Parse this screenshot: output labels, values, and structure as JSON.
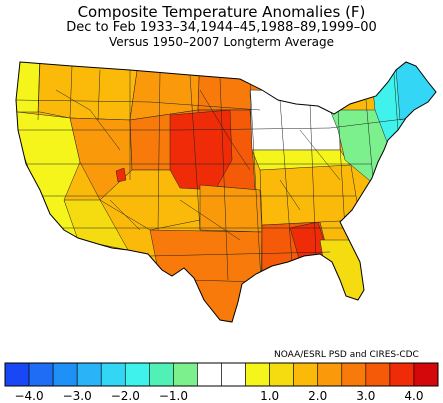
{
  "title": "Composite Temperature Anomalies (F)",
  "subtitle": "Dec to Feb   1933–34,1944–45,1988–89,1999–00",
  "comparison": "Versus 1950–2007 Longterm Average",
  "credit": "NOAA/ESRL PSD and CIRES-CDC",
  "legend": {
    "bins": [
      {
        "color": "#1a47f5"
      },
      {
        "color": "#1f6cf5"
      },
      {
        "color": "#1f90f5"
      },
      {
        "color": "#2ab3f7"
      },
      {
        "color": "#33d6f5"
      },
      {
        "color": "#3ff2ec"
      },
      {
        "color": "#50f0b6"
      },
      {
        "color": "#7cf08c"
      },
      {
        "color": "#ffffff"
      },
      {
        "color": "#ffffff"
      },
      {
        "color": "#f5f51c"
      },
      {
        "color": "#f5dc10"
      },
      {
        "color": "#fbb90a"
      },
      {
        "color": "#fa9a0a"
      },
      {
        "color": "#f77a0a"
      },
      {
        "color": "#f45a08"
      },
      {
        "color": "#ef2b08"
      },
      {
        "color": "#d4080a"
      }
    ],
    "ticks": [
      "−4.0",
      "−3.0",
      "−2.0",
      "−1.0",
      "1.0",
      "2.0",
      "3.0",
      "4.0"
    ]
  },
  "regions": [
    {
      "name": "pacific-northwest",
      "anomaly": 0.8,
      "color": "#fbb90a"
    },
    {
      "name": "washington-coast",
      "anomaly": 0.2,
      "color": "#f5f51c"
    },
    {
      "name": "california",
      "anomaly": 0.4,
      "color": "#f5f51c"
    },
    {
      "name": "california-coast",
      "anomaly": 0.0,
      "color": "#ffffff"
    },
    {
      "name": "great-basin",
      "anomaly": 1.8,
      "color": "#fa9a0a"
    },
    {
      "name": "desert-southwest",
      "anomaly": 0.9,
      "color": "#f5dc10"
    },
    {
      "name": "northern-rockies",
      "anomaly": 1.8,
      "color": "#fa9a0a"
    },
    {
      "name": "central-rockies",
      "anomaly": 2.0,
      "color": "#f77a0a"
    },
    {
      "name": "four-corners",
      "anomaly": 1.4,
      "color": "#fbb90a"
    },
    {
      "name": "northern-plains",
      "anomaly": 2.2,
      "color": "#f77a0a"
    },
    {
      "name": "upper-midwest-core",
      "anomaly": 3.2,
      "color": "#ef2b08"
    },
    {
      "name": "central-plains",
      "anomaly": 2.5,
      "color": "#f45a08"
    },
    {
      "name": "southern-plains",
      "anomaly": 1.8,
      "color": "#fa9a0a"
    },
    {
      "name": "texas",
      "anomaly": 2.2,
      "color": "#f77a0a"
    },
    {
      "name": "louisiana-alabama",
      "anomaly": 2.6,
      "color": "#f45a08"
    },
    {
      "name": "gulf-coast-peak",
      "anomaly": 3.1,
      "color": "#ef2b08"
    },
    {
      "name": "southeast",
      "anomaly": 1.4,
      "color": "#fbb90a"
    },
    {
      "name": "florida",
      "anomaly": 0.9,
      "color": "#f5dc10"
    },
    {
      "name": "great-lakes",
      "anomaly": 0.0,
      "color": "#ffffff"
    },
    {
      "name": "ohio-valley",
      "anomaly": 0.4,
      "color": "#f5f51c"
    },
    {
      "name": "mid-atlantic",
      "anomaly": -0.8,
      "color": "#7cf08c"
    },
    {
      "name": "new-england",
      "anomaly": -1.8,
      "color": "#3ff2ec"
    },
    {
      "name": "northern-maine",
      "anomaly": -2.3,
      "color": "#33d6f5"
    }
  ]
}
